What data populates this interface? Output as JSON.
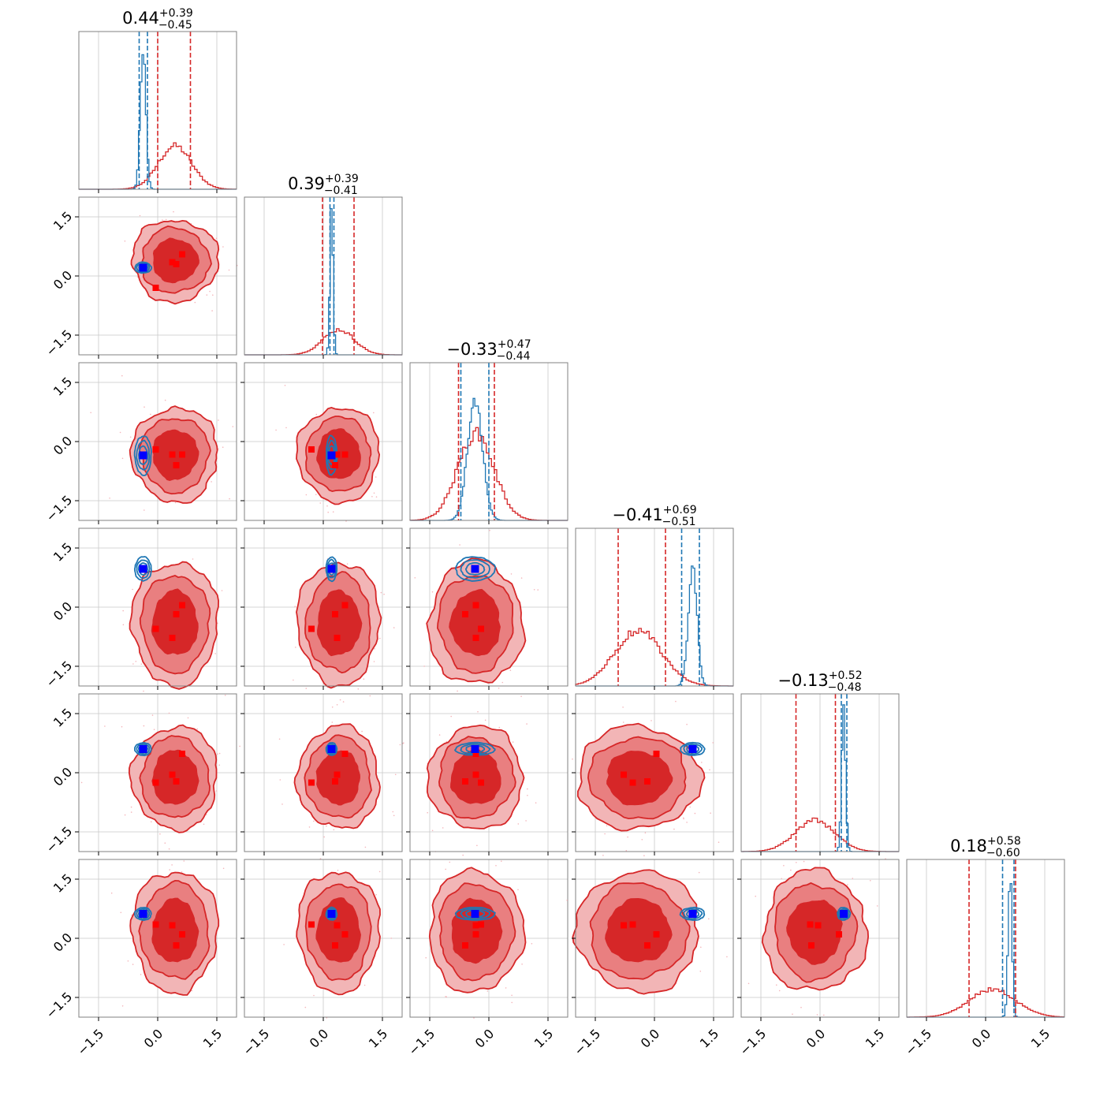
{
  "chart_data": {
    "type": "corner",
    "n_params": 6,
    "axis_range": [
      -2.0,
      2.0
    ],
    "ticks": [
      -1.5,
      0.0,
      1.5
    ],
    "tick_labels": [
      "−1.5",
      "0.0",
      "1.5"
    ],
    "grid": true,
    "series_colors": {
      "red": "#d62728",
      "blue": "#1f77b4",
      "red_fill_light": "#f2b5b6",
      "red_fill_mid": "#e97f80"
    },
    "titles": [
      {
        "value": "0.44",
        "plus": "+0.39",
        "minus": "−0.45"
      },
      {
        "value": "0.39",
        "plus": "+0.39",
        "minus": "−0.41"
      },
      {
        "value": "−0.33",
        "plus": "+0.47",
        "minus": "−0.44"
      },
      {
        "value": "−0.41",
        "plus": "+0.69",
        "minus": "−0.51"
      },
      {
        "value": "−0.13",
        "plus": "+0.52",
        "minus": "−0.48"
      },
      {
        "value": "0.18",
        "plus": "+0.58",
        "minus": "−0.60"
      }
    ],
    "red_posterior": {
      "mean": [
        0.44,
        0.39,
        -0.33,
        -0.41,
        -0.13,
        0.18
      ],
      "sigma": [
        0.42,
        0.4,
        0.46,
        0.6,
        0.5,
        0.59
      ],
      "quantiles": [
        [
          0.0,
          0.83
        ],
        [
          -0.02,
          0.78
        ],
        [
          -0.77,
          0.14
        ],
        [
          -0.92,
          0.28
        ],
        [
          -0.61,
          0.39
        ],
        [
          -0.42,
          0.76
        ]
      ]
    },
    "blue_posterior": {
      "mean": [
        -0.37,
        0.21,
        -0.35,
        0.97,
        0.6,
        0.62
      ],
      "sigma": [
        0.07,
        0.04,
        0.19,
        0.11,
        0.05,
        0.05
      ],
      "quantiles": [
        [
          -0.47,
          -0.26
        ],
        [
          0.17,
          0.27
        ],
        [
          -0.71,
          0.0
        ],
        [
          0.69,
          1.14
        ],
        [
          0.54,
          0.68
        ],
        [
          0.43,
          0.72
        ]
      ]
    },
    "blue_markers": [
      -0.37,
      0.21,
      -0.35,
      0.97,
      0.6,
      0.62
    ],
    "red_markers": [
      [
        0.62,
        0.55,
        -0.33,
        0.05,
        0.48,
        0.1
      ],
      [
        0.37,
        0.35,
        -0.33,
        -0.78,
        -0.05,
        0.33
      ],
      [
        0.47,
        0.3,
        -0.6,
        -0.18,
        -0.22,
        -0.18
      ],
      [
        -0.05,
        -0.3,
        -0.2,
        -0.55,
        -0.25,
        0.35
      ]
    ]
  }
}
